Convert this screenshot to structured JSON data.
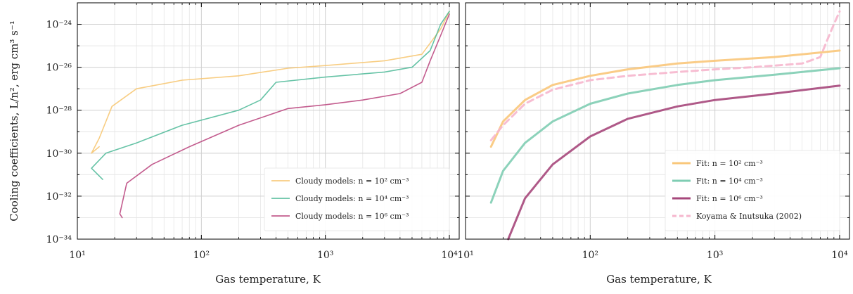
{
  "figure": {
    "ylabel": "Cooling coefficients, L/n², erg cm³ s⁻¹",
    "xlabel_left": "Gas temperature, K",
    "xlabel_right": "Gas temperature, K"
  },
  "chart_data": [
    {
      "type": "line",
      "panel": "left",
      "xscale": "log",
      "yscale": "log",
      "xlim": [
        10,
        12000
      ],
      "ylim": [
        1e-34,
        1e-23
      ],
      "xlabel": "Gas temperature, K",
      "ylabel": "Cooling coefficients, L/n², erg cm³ s⁻¹",
      "xticks": [
        "10¹",
        "10²",
        "10³",
        "10⁴"
      ],
      "yticks": [
        "10⁻³⁴",
        "10⁻³²",
        "10⁻³⁰",
        "10⁻²⁸",
        "10⁻²⁶",
        "10⁻²⁴"
      ],
      "grid": true,
      "legend_position": "lower-right",
      "series": [
        {
          "name": "Cloudy models: n = 10² cm⁻³",
          "color": "#f7c46c",
          "points": [
            [
              15,
              2e-30
            ],
            [
              13,
              1e-30
            ],
            [
              15,
              5e-30
            ],
            [
              19,
              1.5e-28
            ],
            [
              30,
              1e-27
            ],
            [
              70,
              2.5e-27
            ],
            [
              200,
              4e-27
            ],
            [
              500,
              9e-27
            ],
            [
              1000,
              1.2e-26
            ],
            [
              3000,
              2e-26
            ],
            [
              6000,
              4e-26
            ],
            [
              8500,
              6e-25
            ],
            [
              10000,
              4e-24
            ]
          ]
        },
        {
          "name": "Cloudy models: n = 10⁴ cm⁻³",
          "color": "#4bb896",
          "points": [
            [
              16,
              6e-32
            ],
            [
              13,
              2e-31
            ],
            [
              17,
              1e-30
            ],
            [
              30,
              3e-30
            ],
            [
              70,
              2e-29
            ],
            [
              200,
              1e-28
            ],
            [
              300,
              3e-28
            ],
            [
              400,
              2e-27
            ],
            [
              1000,
              3.5e-27
            ],
            [
              3000,
              6e-27
            ],
            [
              5000,
              1e-26
            ],
            [
              7000,
              6e-26
            ],
            [
              8500,
              1e-24
            ],
            [
              10000,
              4e-24
            ]
          ]
        },
        {
          "name": "Cloudy models: n = 10⁶ cm⁻³",
          "color": "#b9407a",
          "points": [
            [
              23,
              1e-33
            ],
            [
              22,
              1.5e-33
            ],
            [
              25,
              4e-32
            ],
            [
              40,
              3e-31
            ],
            [
              80,
              2e-30
            ],
            [
              200,
              2e-29
            ],
            [
              500,
              1.2e-28
            ],
            [
              1000,
              1.8e-28
            ],
            [
              2000,
              3e-28
            ],
            [
              4000,
              6e-28
            ],
            [
              6000,
              2e-27
            ],
            [
              7000,
              2e-26
            ],
            [
              8500,
              3e-25
            ],
            [
              10000,
              3e-24
            ]
          ]
        }
      ]
    },
    {
      "type": "line",
      "panel": "right",
      "xscale": "log",
      "yscale": "log",
      "xlim": [
        10,
        12000
      ],
      "ylim": [
        1e-34,
        1e-23
      ],
      "xlabel": "Gas temperature, K",
      "xticks": [
        "10¹",
        "10²",
        "10³",
        "10⁴"
      ],
      "grid": true,
      "legend_position": "lower-right",
      "series": [
        {
          "name": "Fit: n = 10² cm⁻³",
          "color": "#f9c77a",
          "points": [
            [
              16,
              2e-30
            ],
            [
              20,
              3e-29
            ],
            [
              30,
              3e-28
            ],
            [
              50,
              1.5e-27
            ],
            [
              100,
              4e-27
            ],
            [
              200,
              8e-27
            ],
            [
              500,
              1.5e-26
            ],
            [
              1000,
              2e-26
            ],
            [
              3000,
              3e-26
            ],
            [
              10000,
              6e-26
            ]
          ]
        },
        {
          "name": "Fit: n = 10⁴ cm⁻³",
          "color": "#7fcdb3",
          "points": [
            [
              16,
              5e-33
            ],
            [
              20,
              1.5e-31
            ],
            [
              30,
              3e-30
            ],
            [
              50,
              3e-29
            ],
            [
              100,
              2e-28
            ],
            [
              200,
              6e-28
            ],
            [
              500,
              1.5e-27
            ],
            [
              1000,
              2.5e-27
            ],
            [
              3000,
              4.5e-27
            ],
            [
              10000,
              9e-27
            ]
          ]
        },
        {
          "name": "Fit: n = 10⁶ cm⁻³",
          "color": "#a6477b",
          "points": [
            [
              22,
              1e-34
            ],
            [
              30,
              8e-33
            ],
            [
              50,
              3e-31
            ],
            [
              100,
              6e-30
            ],
            [
              200,
              4e-29
            ],
            [
              500,
              1.5e-28
            ],
            [
              1000,
              3e-28
            ],
            [
              3000,
              6e-28
            ],
            [
              10000,
              1.4e-27
            ]
          ]
        },
        {
          "name": "Koyama & Inutsuka (2002)",
          "color": "#f6b6cd",
          "dashed": true,
          "points": [
            [
              16,
              4e-30
            ],
            [
              20,
              2e-29
            ],
            [
              30,
              2e-28
            ],
            [
              50,
              9e-28
            ],
            [
              100,
              2.5e-27
            ],
            [
              200,
              4e-27
            ],
            [
              500,
              6e-27
            ],
            [
              1000,
              8e-27
            ],
            [
              2000,
              1e-26
            ],
            [
              5000,
              1.5e-26
            ],
            [
              7000,
              3e-26
            ],
            [
              8000,
              2e-25
            ],
            [
              9000,
              1e-24
            ],
            [
              10000,
              4e-24
            ]
          ]
        }
      ]
    }
  ]
}
